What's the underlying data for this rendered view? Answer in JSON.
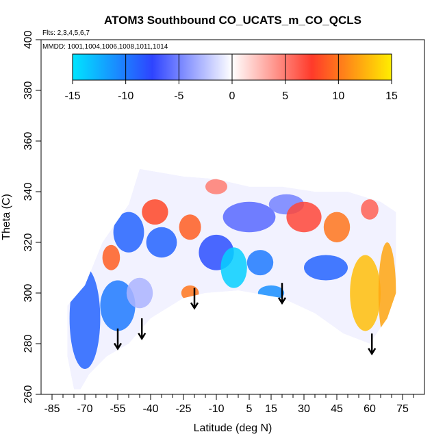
{
  "chart_data": {
    "type": "heatmap",
    "title": "ATOM3 Southbound CO_UCATS_m_CO_QCLS",
    "flights_note": "Flts: 2,3,4,5,6,7",
    "dates_note": "MMDD: 1001,1004,1006,1008,1011,1014",
    "xlabel": "Latitude (deg N)",
    "ylabel": "Theta (C)",
    "xlim": [
      -90,
      85
    ],
    "ylim": [
      260,
      400
    ],
    "x_major_ticks": [
      -85,
      -70,
      -55,
      -40,
      -25,
      -10,
      5,
      15,
      30,
      45,
      60,
      75
    ],
    "x_minor_ticks": [
      -80,
      -75,
      -65,
      -60,
      -50,
      -45,
      -35,
      -30,
      -20,
      -15,
      -5,
      0,
      10,
      20,
      25,
      35,
      40,
      50,
      55,
      65,
      70,
      80
    ],
    "y_ticks": [
      260,
      280,
      300,
      320,
      340,
      360,
      380,
      400
    ],
    "colorbar": {
      "range": [
        -15,
        15
      ],
      "ticks": [
        -15,
        -10,
        -5,
        0,
        5,
        10,
        15
      ],
      "colors": [
        "#00e5ff",
        "#2e44ff",
        "#ffffff",
        "#ff3a2a",
        "#ffee00"
      ]
    },
    "field_outline": [
      [
        -75,
        262
      ],
      [
        -78,
        275
      ],
      [
        -78,
        295
      ],
      [
        -70,
        303
      ],
      [
        -62,
        320
      ],
      [
        -50,
        335
      ],
      [
        -45,
        349
      ],
      [
        -25,
        346
      ],
      [
        -10,
        345
      ],
      [
        5,
        342
      ],
      [
        20,
        342
      ],
      [
        35,
        340
      ],
      [
        50,
        340
      ],
      [
        65,
        336
      ],
      [
        72,
        332
      ],
      [
        72,
        300
      ],
      [
        68,
        290
      ],
      [
        60,
        280
      ],
      [
        48,
        284
      ],
      [
        35,
        292
      ],
      [
        20,
        298
      ],
      [
        0,
        301
      ],
      [
        -15,
        300
      ],
      [
        -25,
        298
      ],
      [
        -40,
        290
      ],
      [
        -50,
        280
      ],
      [
        -60,
        275
      ],
      [
        -68,
        268
      ],
      [
        -72,
        262
      ]
    ],
    "patches": [
      {
        "x": -70,
        "y": 290,
        "rx": 7,
        "ry": 20,
        "value": -9
      },
      {
        "x": -55,
        "y": 295,
        "rx": 8,
        "ry": 10,
        "value": -10
      },
      {
        "x": -45,
        "y": 300,
        "rx": 6,
        "ry": 6,
        "value": -3
      },
      {
        "x": -58,
        "y": 314,
        "rx": 4,
        "ry": 5,
        "value": 9
      },
      {
        "x": -50,
        "y": 324,
        "rx": 7,
        "ry": 8,
        "value": -9
      },
      {
        "x": -38,
        "y": 332,
        "rx": 6,
        "ry": 5,
        "value": 8
      },
      {
        "x": -35,
        "y": 320,
        "rx": 7,
        "ry": 6,
        "value": -9
      },
      {
        "x": -22,
        "y": 326,
        "rx": 5,
        "ry": 5,
        "value": 9
      },
      {
        "x": -22,
        "y": 300,
        "rx": 4,
        "ry": 3,
        "value": 10
      },
      {
        "x": -10,
        "y": 316,
        "rx": 8,
        "ry": 7,
        "value": -8
      },
      {
        "x": -2,
        "y": 310,
        "rx": 6,
        "ry": 8,
        "value": -14
      },
      {
        "x": 10,
        "y": 312,
        "rx": 6,
        "ry": 5,
        "value": -10
      },
      {
        "x": 5,
        "y": 330,
        "rx": 12,
        "ry": 6,
        "value": -6
      },
      {
        "x": 22,
        "y": 335,
        "rx": 8,
        "ry": 4,
        "value": -5
      },
      {
        "x": 30,
        "y": 330,
        "rx": 8,
        "ry": 6,
        "value": 7
      },
      {
        "x": 45,
        "y": 326,
        "rx": 6,
        "ry": 6,
        "value": 10
      },
      {
        "x": 40,
        "y": 310,
        "rx": 10,
        "ry": 5,
        "value": -9
      },
      {
        "x": 58,
        "y": 300,
        "rx": 7,
        "ry": 15,
        "value": 13
      },
      {
        "x": 68,
        "y": 300,
        "rx": 4,
        "ry": 20,
        "value": 12
      },
      {
        "x": 60,
        "y": 333,
        "rx": 4,
        "ry": 4,
        "value": 6
      },
      {
        "x": -10,
        "y": 342,
        "rx": 5,
        "ry": 3,
        "value": 5
      },
      {
        "x": 15,
        "y": 300,
        "rx": 6,
        "ry": 3,
        "value": -11
      }
    ],
    "arrows": [
      {
        "x": -55,
        "y_top": 286,
        "y_bottom": 278
      },
      {
        "x": -44,
        "y_top": 290,
        "y_bottom": 282
      },
      {
        "x": -20,
        "y_top": 302,
        "y_bottom": 294
      },
      {
        "x": 20,
        "y_top": 304,
        "y_bottom": 296
      },
      {
        "x": 61,
        "y_top": 284,
        "y_bottom": 276
      }
    ],
    "grid": false,
    "legend": "colorbar top"
  }
}
